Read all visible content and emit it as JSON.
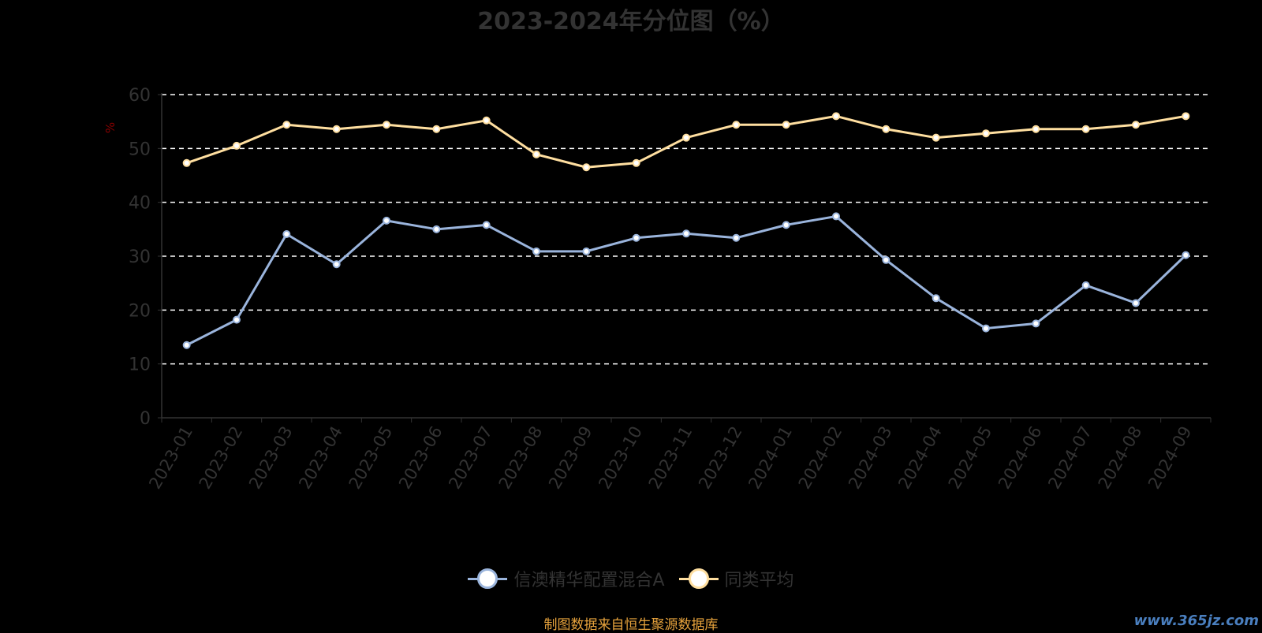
{
  "chart_data": {
    "type": "line",
    "title": "2023-2024年分位图（%）",
    "ylabel": "%",
    "ylim": [
      0,
      60
    ],
    "yticks": [
      0,
      10,
      20,
      30,
      40,
      50,
      60
    ],
    "grid": true,
    "legend_position": "bottom",
    "categories": [
      "2023-01",
      "2023-02",
      "2023-03",
      "2023-04",
      "2023-05",
      "2023-06",
      "2023-07",
      "2023-08",
      "2023-09",
      "2023-10",
      "2023-11",
      "2023-12",
      "2024-01",
      "2024-02",
      "2024-03",
      "2024-04",
      "2024-05",
      "2024-06",
      "2024-07",
      "2024-08",
      "2024-09"
    ],
    "series": [
      {
        "name": "信澳精华配置混合A",
        "color": "#9ab4dc",
        "values": [
          13.5,
          18.2,
          34.1,
          28.5,
          36.6,
          35.0,
          35.8,
          30.9,
          30.9,
          33.4,
          34.2,
          33.4,
          35.8,
          37.4,
          29.3,
          22.2,
          16.6,
          17.5,
          24.6,
          21.3,
          30.2
        ]
      },
      {
        "name": "同类平均",
        "color": "#ffdfa0",
        "values": [
          47.3,
          50.5,
          54.4,
          53.6,
          54.4,
          53.6,
          55.2,
          48.9,
          46.5,
          47.3,
          52.0,
          54.4,
          54.4,
          56.0,
          53.6,
          52.0,
          52.8,
          53.6,
          53.6,
          54.4,
          56.0
        ]
      }
    ]
  },
  "footer": {
    "source": "制图数据来自恒生聚源数据库",
    "watermark": "www.365jz.com"
  }
}
